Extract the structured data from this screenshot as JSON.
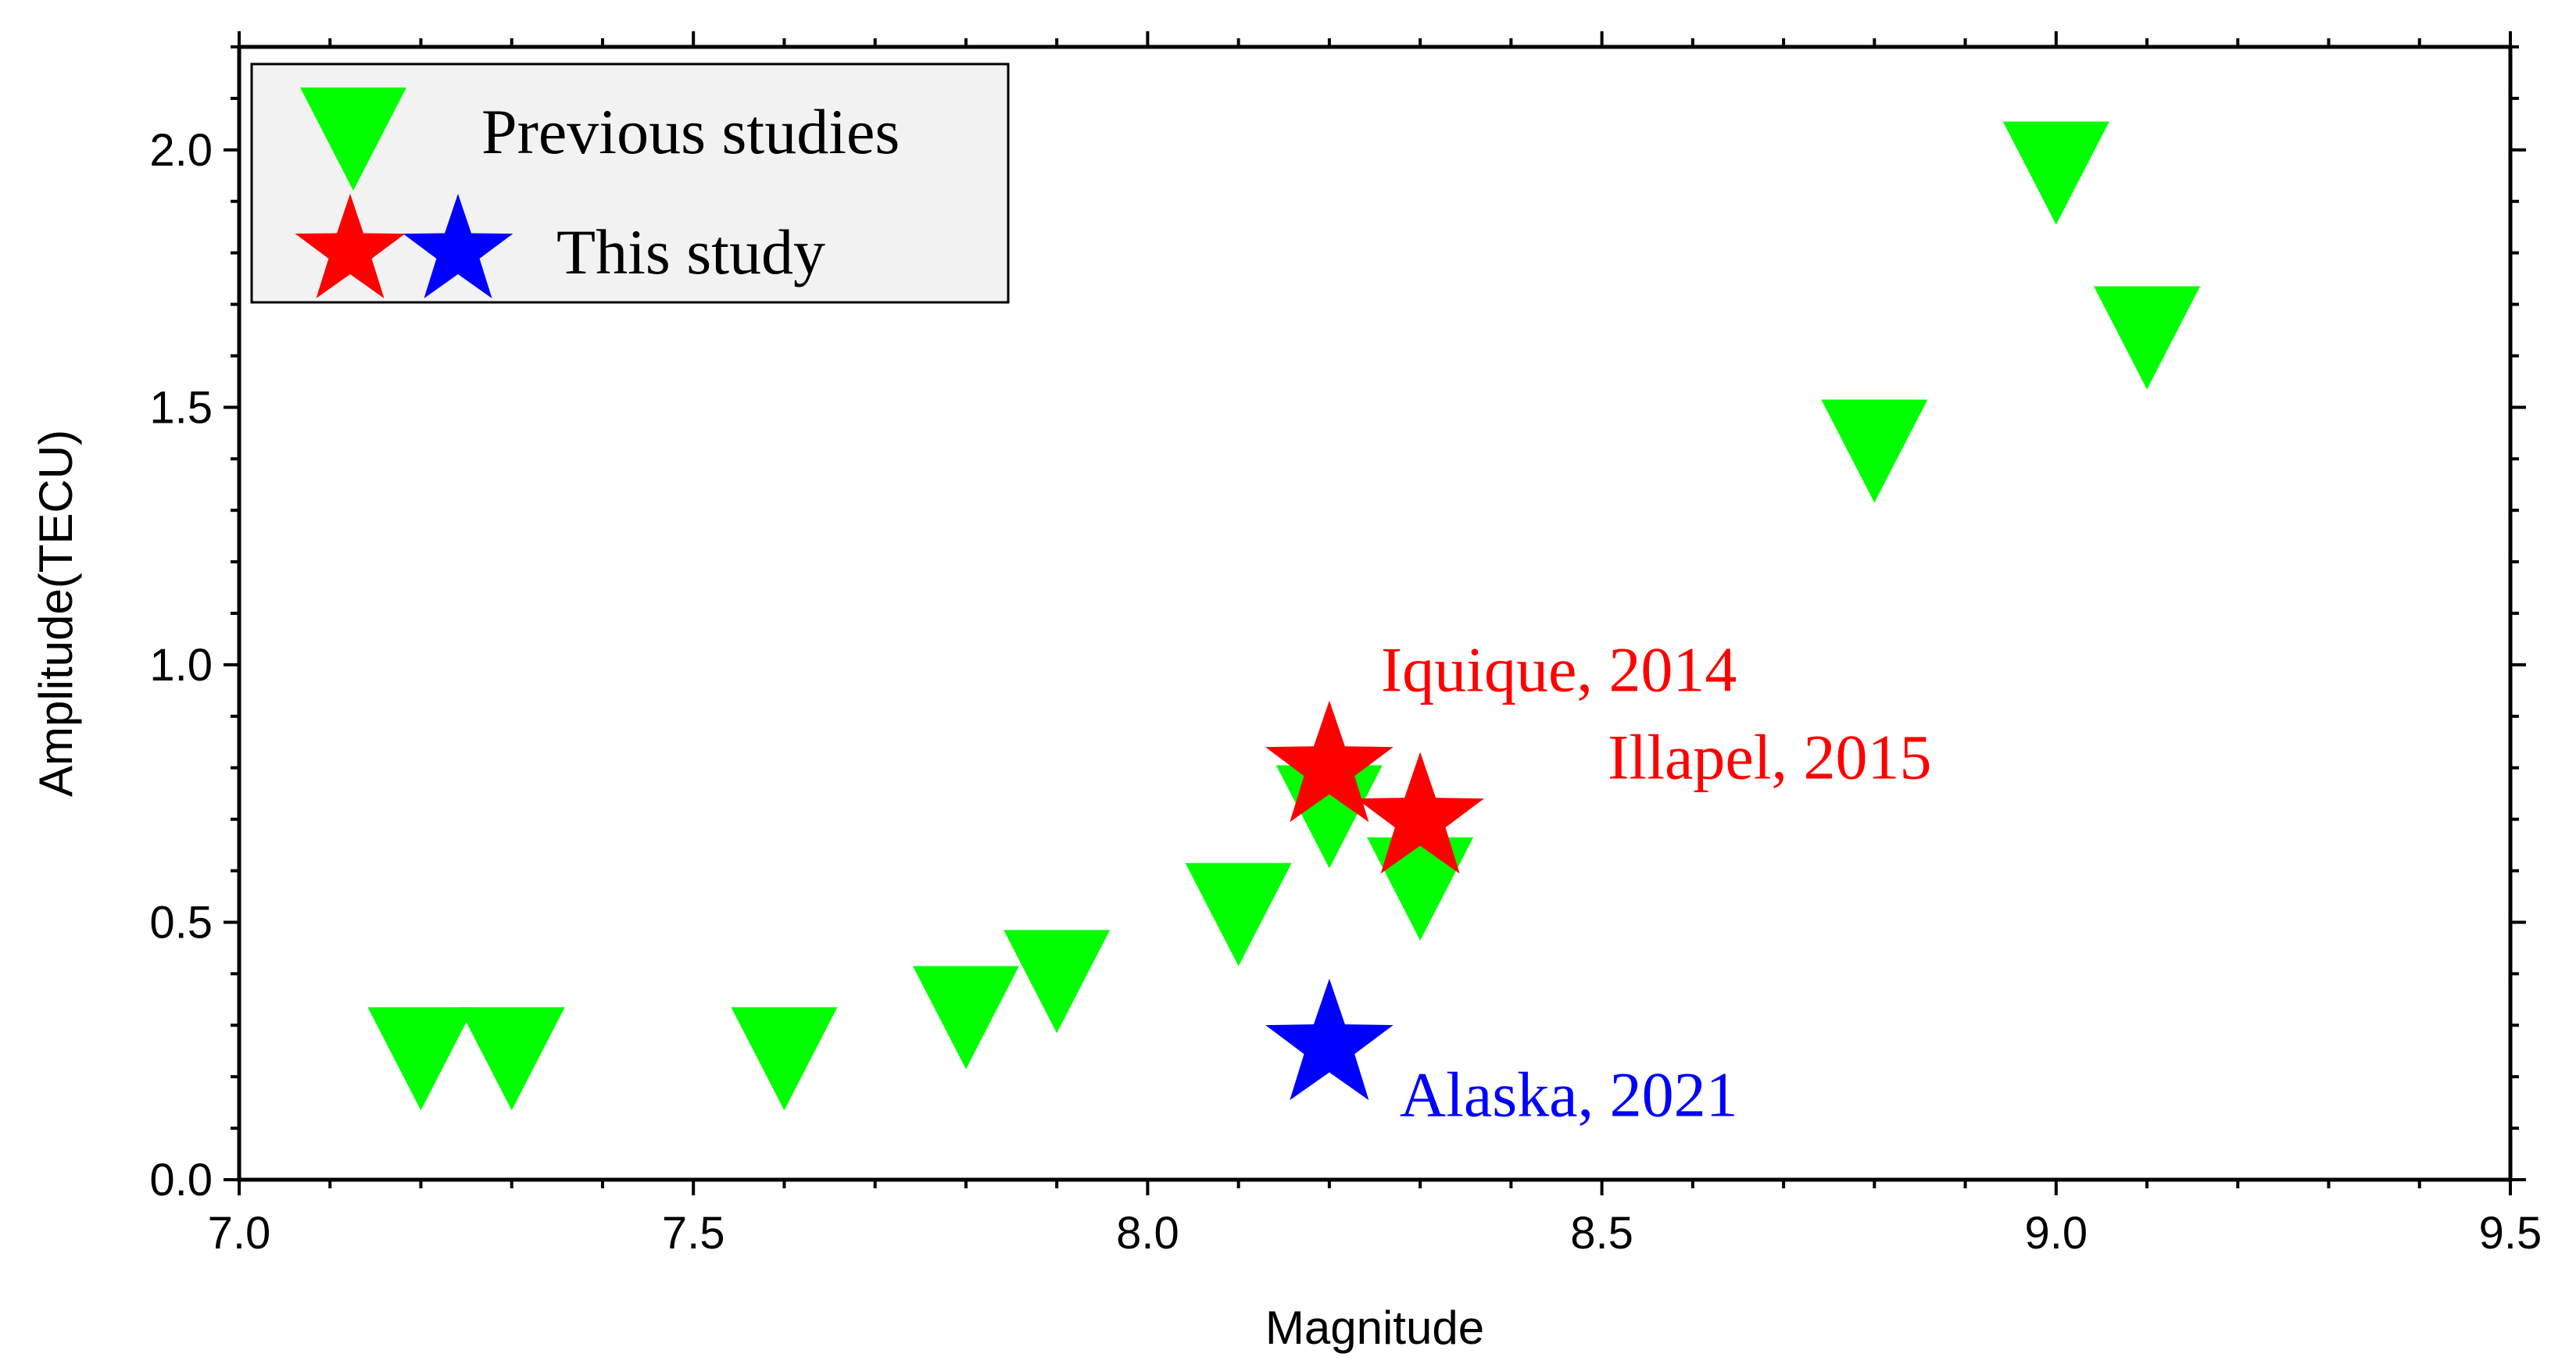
{
  "chart_data": {
    "type": "scatter",
    "title": "",
    "xlabel": "Magnitude",
    "ylabel": "Amplitude(TECU)",
    "xlim": [
      7.0,
      9.5
    ],
    "ylim": [
      0.0,
      2.2
    ],
    "xticks": [
      "7.0",
      "7.5",
      "8.0",
      "8.5",
      "9.0",
      "9.5"
    ],
    "yticks": [
      "0.0",
      "0.5",
      "1.0",
      "1.5",
      "2.0"
    ],
    "legend_position": "top-left",
    "series": [
      {
        "name": "Previous studies",
        "marker": "inverted-triangle",
        "color": "#00ff00",
        "points": [
          {
            "x": 7.2,
            "y": 0.25
          },
          {
            "x": 7.3,
            "y": 0.25
          },
          {
            "x": 7.6,
            "y": 0.25
          },
          {
            "x": 7.8,
            "y": 0.33
          },
          {
            "x": 7.9,
            "y": 0.4
          },
          {
            "x": 8.1,
            "y": 0.53
          },
          {
            "x": 8.2,
            "y": 0.72
          },
          {
            "x": 8.3,
            "y": 0.58
          },
          {
            "x": 8.8,
            "y": 1.43
          },
          {
            "x": 9.0,
            "y": 1.97
          },
          {
            "x": 9.1,
            "y": 1.65
          }
        ]
      },
      {
        "name": "This study",
        "marker": "star",
        "points": [
          {
            "x": 8.2,
            "y": 0.8,
            "color": "#ff0000",
            "label": "Iquique, 2014"
          },
          {
            "x": 8.3,
            "y": 0.7,
            "color": "#ff0000",
            "label": "Illapel, 2015"
          },
          {
            "x": 8.2,
            "y": 0.26,
            "color": "#0000ff",
            "label": "Alaska, 2021"
          }
        ]
      }
    ],
    "legend": {
      "items": [
        {
          "label": "Previous studies",
          "symbols": [
            {
              "marker": "inverted-triangle",
              "color": "#00ff00"
            }
          ]
        },
        {
          "label": "This study",
          "symbols": [
            {
              "marker": "star",
              "color": "#ff0000"
            },
            {
              "marker": "star",
              "color": "#0000ff"
            }
          ]
        }
      ]
    }
  }
}
